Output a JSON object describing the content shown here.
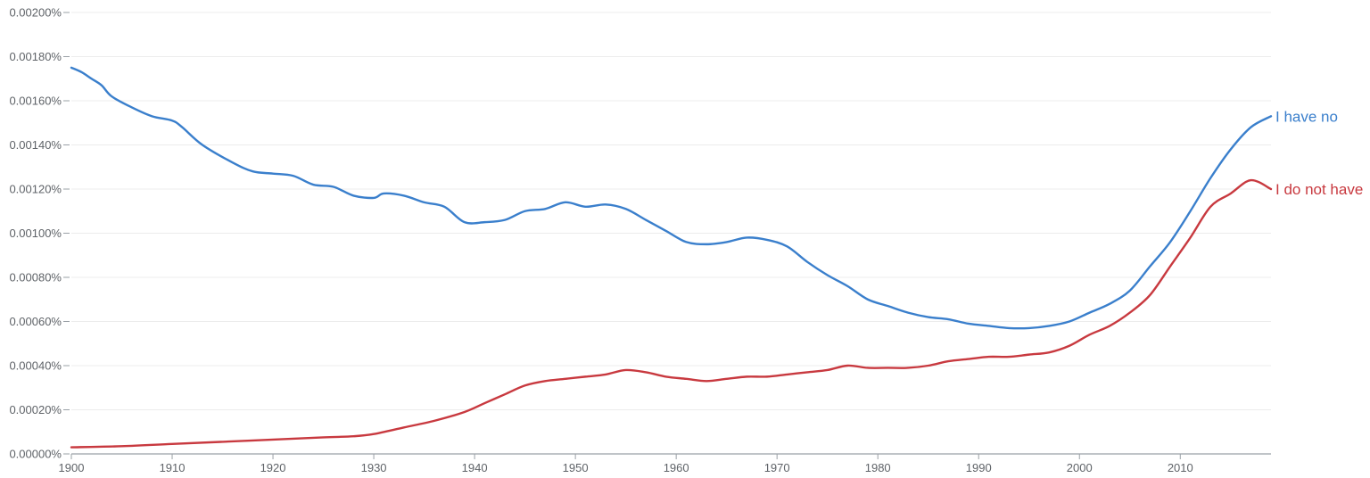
{
  "chart_data": {
    "type": "line",
    "title": "",
    "xlabel": "",
    "ylabel": "",
    "xlim": [
      1900,
      2019
    ],
    "ylim": [
      0,
      0.002
    ],
    "x_ticks": [
      1900,
      1910,
      1920,
      1930,
      1940,
      1950,
      1960,
      1970,
      1980,
      1990,
      2000,
      2010
    ],
    "x_tick_labels": [
      "1900",
      "1910",
      "1920",
      "1930",
      "1940",
      "1950",
      "1960",
      "1970",
      "1980",
      "1990",
      "2000",
      "2010"
    ],
    "y_ticks": [
      0,
      0.0002,
      0.0004,
      0.0006,
      0.0008,
      0.001,
      0.0012,
      0.0014,
      0.0016,
      0.0018,
      0.002
    ],
    "y_tick_labels": [
      "0.00000%",
      "0.00020%",
      "0.00040%",
      "0.00060%",
      "0.00080%",
      "0.00100%",
      "0.00120%",
      "0.00140%",
      "0.00160%",
      "0.00180%",
      "0.00200%"
    ],
    "grid": true,
    "legend": "inline-right",
    "series": [
      {
        "name": "I have no",
        "color": "#3a7fcc",
        "x": [
          1900,
          1901,
          1902,
          1903,
          1904,
          1906,
          1908,
          1910,
          1911,
          1913,
          1916,
          1918,
          1920,
          1922,
          1924,
          1926,
          1928,
          1930,
          1931,
          1933,
          1935,
          1937,
          1939,
          1941,
          1943,
          1945,
          1947,
          1949,
          1951,
          1953,
          1955,
          1957,
          1959,
          1961,
          1963,
          1965,
          1967,
          1969,
          1971,
          1973,
          1975,
          1977,
          1979,
          1981,
          1983,
          1985,
          1987,
          1989,
          1991,
          1993,
          1995,
          1997,
          1999,
          2001,
          2003,
          2005,
          2007,
          2009,
          2011,
          2013,
          2015,
          2017,
          2019
        ],
        "values": [
          0.00175,
          0.00173,
          0.0017,
          0.00167,
          0.00162,
          0.00157,
          0.00153,
          0.00151,
          0.00148,
          0.0014,
          0.00132,
          0.00128,
          0.00127,
          0.00126,
          0.00122,
          0.00121,
          0.00117,
          0.00116,
          0.00118,
          0.00117,
          0.00114,
          0.00112,
          0.00105,
          0.00105,
          0.00106,
          0.0011,
          0.00111,
          0.00114,
          0.00112,
          0.00113,
          0.00111,
          0.00106,
          0.00101,
          0.00096,
          0.00095,
          0.00096,
          0.00098,
          0.00097,
          0.00094,
          0.00087,
          0.00081,
          0.00076,
          0.0007,
          0.00067,
          0.00064,
          0.00062,
          0.00061,
          0.00059,
          0.00058,
          0.00057,
          0.00057,
          0.00058,
          0.0006,
          0.00064,
          0.00068,
          0.00074,
          0.00085,
          0.00096,
          0.0011,
          0.00125,
          0.00138,
          0.00148,
          0.00153
        ]
      },
      {
        "name": "I do not have",
        "color": "#c8393f",
        "x": [
          1900,
          1905,
          1910,
          1915,
          1920,
          1925,
          1928,
          1930,
          1933,
          1936,
          1939,
          1941,
          1943,
          1945,
          1947,
          1949,
          1951,
          1953,
          1955,
          1957,
          1959,
          1961,
          1963,
          1965,
          1967,
          1969,
          1971,
          1973,
          1975,
          1977,
          1979,
          1981,
          1983,
          1985,
          1987,
          1989,
          1991,
          1993,
          1995,
          1997,
          1999,
          2001,
          2003,
          2005,
          2007,
          2009,
          2011,
          2013,
          2015,
          2017,
          2019
        ],
        "values": [
          3e-05,
          3.5e-05,
          4.5e-05,
          5.5e-05,
          6.5e-05,
          7.5e-05,
          8e-05,
          9e-05,
          0.00012,
          0.00015,
          0.00019,
          0.00023,
          0.00027,
          0.00031,
          0.00033,
          0.00034,
          0.00035,
          0.00036,
          0.00038,
          0.00037,
          0.00035,
          0.00034,
          0.00033,
          0.00034,
          0.00035,
          0.00035,
          0.00036,
          0.00037,
          0.00038,
          0.0004,
          0.00039,
          0.00039,
          0.00039,
          0.0004,
          0.00042,
          0.00043,
          0.00044,
          0.00044,
          0.00045,
          0.00046,
          0.00049,
          0.00054,
          0.00058,
          0.00064,
          0.00072,
          0.00085,
          0.00098,
          0.00112,
          0.00118,
          0.00124,
          0.0012
        ]
      }
    ]
  }
}
